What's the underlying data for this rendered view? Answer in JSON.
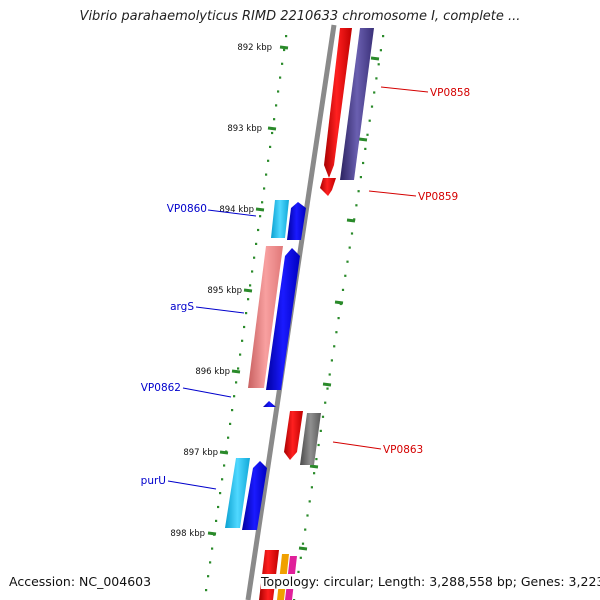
{
  "title": "Vibrio parahaemolyticus RIMD 2210633 chromosome I, complete ...",
  "footer": {
    "accession": "Accession: NC_004603",
    "topology": "Topology: circular; Length: 3,288,558 bp; Genes: 3,223"
  },
  "ticks": [
    "892 kbp",
    "893 kbp",
    "894 kbp",
    "895 kbp",
    "896 kbp",
    "897 kbp",
    "898 kbp"
  ],
  "genes": [
    {
      "name": "VP0858",
      "color": "#d40000"
    },
    {
      "name": "VP0859",
      "color": "#d40000"
    },
    {
      "name": "VP0860",
      "color": "#0000cc"
    },
    {
      "name": "argS",
      "color": "#0000cc"
    },
    {
      "name": "VP0862",
      "color": "#0000cc"
    },
    {
      "name": "VP0863",
      "color": "#d40000"
    },
    {
      "name": "purU",
      "color": "#0000cc"
    }
  ],
  "colors": {
    "backbone": "#8a8a8a",
    "tick_marks": "#2a8a2a",
    "red": "#ee1111",
    "navy": "#4b3f8a",
    "blue": "#0000ee",
    "cyan": "#22c0e8",
    "salmon": "#f08080",
    "gray": "#6f6f6f"
  }
}
